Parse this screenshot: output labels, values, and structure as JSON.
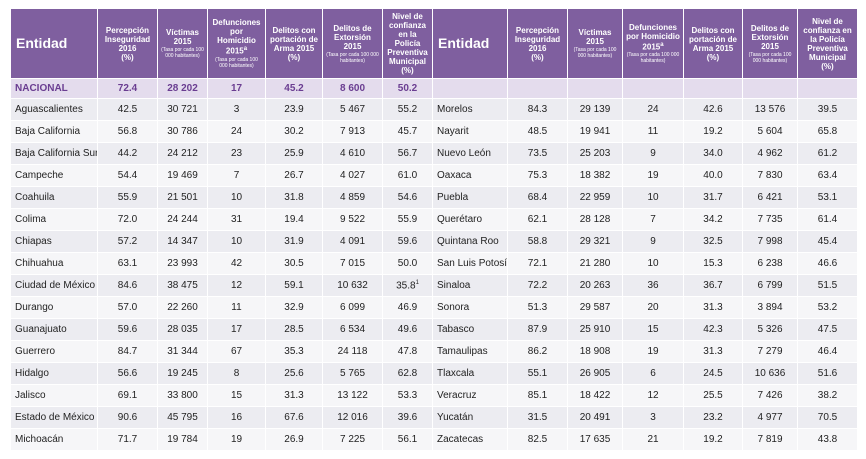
{
  "table": {
    "header": [
      {
        "title": "Entidad"
      },
      {
        "title": "Percepción Inseguridad 2016",
        "unit": "(%)"
      },
      {
        "title": "Víctimas 2015",
        "note": "(Tasa por cada 100 000 habitantes)"
      },
      {
        "title": "Defunciones por Homicidio 2015",
        "sup": "a",
        "note": "(Tasa por cada 100 000 habitantes)"
      },
      {
        "title": "Delitos con portación de Arma 2015",
        "unit": "(%)"
      },
      {
        "title": "Delitos de Extorsión 2015",
        "note": "(Tasa por cada 100 000 habitantes)"
      },
      {
        "title": "Nivel de confianza en la Policía Preventiva Municipal",
        "unit": "(%)"
      },
      {
        "title": "Entidad"
      },
      {
        "title": "Percepción Inseguridad 2016",
        "unit": "(%)"
      },
      {
        "title": "Víctimas 2015",
        "note": "(Tasa por cada 100 000 habitantes)"
      },
      {
        "title": "Defunciones por Homicidio 2015",
        "sup": "a",
        "note": "(Tasa por cada 100 000 habitantes)"
      },
      {
        "title": "Delitos con portación de Arma 2015",
        "unit": "(%)"
      },
      {
        "title": "Delitos de Extorsión 2015",
        "note": "(Tasa por cada 100 000 habitantes)"
      },
      {
        "title": "Nivel de confianza en la Policía Preventiva Municipal",
        "unit": "(%)"
      }
    ],
    "national": [
      "NACIONAL",
      "72.4",
      "28 202",
      "17",
      "45.2",
      "8 600",
      "50.2"
    ],
    "rows": [
      [
        "Aguascalientes",
        "42.5",
        "30 721",
        "3",
        "23.9",
        "5 467",
        "55.2",
        "Morelos",
        "84.3",
        "29 139",
        "24",
        "42.6",
        "13 576",
        "39.5"
      ],
      [
        "Baja California",
        "56.8",
        "30 786",
        "24",
        "30.2",
        "7 913",
        "45.7",
        "Nayarit",
        "48.5",
        "19 941",
        "11",
        "19.2",
        "5 604",
        "65.8"
      ],
      [
        "Baja California Sur",
        "44.2",
        "24 212",
        "23",
        "25.9",
        "4 610",
        "56.7",
        "Nuevo León",
        "73.5",
        "25 203",
        "9",
        "34.0",
        "4 962",
        "61.2"
      ],
      [
        "Campeche",
        "54.4",
        "19 469",
        "7",
        "26.7",
        "4 027",
        "61.0",
        "Oaxaca",
        "75.3",
        "18 382",
        "19",
        "40.0",
        "7 830",
        "63.4"
      ],
      [
        "Coahuila",
        "55.9",
        "21 501",
        "10",
        "31.8",
        "4 859",
        "54.6",
        "Puebla",
        "68.4",
        "22 959",
        "10",
        "31.7",
        "6 421",
        "53.1"
      ],
      [
        "Colima",
        "72.0",
        "24 244",
        "31",
        "19.4",
        "9 522",
        "55.9",
        "Querétaro",
        "62.1",
        "28 128",
        "7",
        "34.2",
        "7 735",
        "61.4"
      ],
      [
        "Chiapas",
        "57.2",
        "14 347",
        "10",
        "31.9",
        "4 091",
        "59.6",
        "Quintana Roo",
        "58.8",
        "29 321",
        "9",
        "32.5",
        "7 998",
        "45.4"
      ],
      [
        "Chihuahua",
        "63.1",
        "23 993",
        "42",
        "30.5",
        "7 015",
        "50.0",
        "San Luis Potosí",
        "72.1",
        "21 280",
        "10",
        "15.3",
        "6 238",
        "46.6"
      ],
      [
        "Ciudad de México",
        "84.6",
        "38 475",
        "12",
        "59.1",
        "10 632",
        {
          "value": "35.8",
          "sup": "1"
        },
        "Sinaloa",
        "72.2",
        "20 263",
        "36",
        "36.7",
        "6 799",
        "51.5"
      ],
      [
        "Durango",
        "57.0",
        "22 260",
        "11",
        "32.9",
        "6 099",
        "46.9",
        "Sonora",
        "51.3",
        "29 587",
        "20",
        "31.3",
        "3 894",
        "53.2"
      ],
      [
        "Guanajuato",
        "59.6",
        "28 035",
        "17",
        "28.5",
        "6 534",
        "49.6",
        "Tabasco",
        "87.9",
        "25 910",
        "15",
        "42.3",
        "5 326",
        "47.5"
      ],
      [
        "Guerrero",
        "84.7",
        "31 344",
        "67",
        "35.3",
        "24 118",
        "47.8",
        "Tamaulipas",
        "86.2",
        "18 908",
        "19",
        "31.3",
        "7 279",
        "46.4"
      ],
      [
        "Hidalgo",
        "56.6",
        "19 245",
        "8",
        "25.6",
        "5 765",
        "62.8",
        "Tlaxcala",
        "55.1",
        "26 905",
        "6",
        "24.5",
        "10 636",
        "51.6"
      ],
      [
        "Jalisco",
        "69.1",
        "33 800",
        "15",
        "31.3",
        "13 122",
        "53.3",
        "Veracruz",
        "85.1",
        "18 422",
        "12",
        "25.5",
        "7 426",
        "38.2"
      ],
      [
        "Estado de México",
        "90.6",
        "45 795",
        "16",
        "67.6",
        "12 016",
        "39.6",
        "Yucatán",
        "31.5",
        "20 491",
        "3",
        "23.2",
        "4 977",
        "70.5"
      ],
      [
        "Michoacán",
        "71.7",
        "19 784",
        "19",
        "26.9",
        "7 225",
        "56.1",
        "Zacatecas",
        "82.5",
        "17 635",
        "21",
        "19.2",
        "7 819",
        "43.8"
      ]
    ]
  }
}
